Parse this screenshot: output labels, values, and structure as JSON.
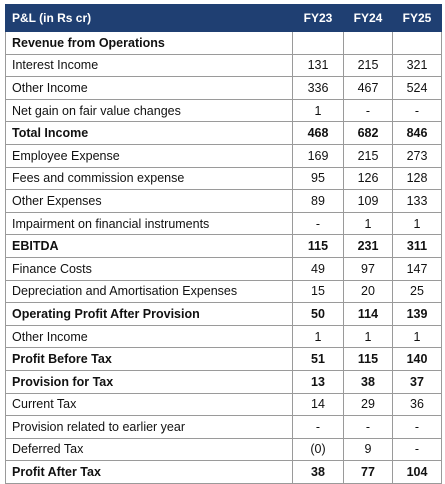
{
  "table": {
    "header": {
      "label": "P&L (in Rs cr)",
      "years": [
        "FY23",
        "FY24",
        "FY25"
      ]
    },
    "rows": [
      {
        "label": "Revenue from Operations",
        "values": [
          "",
          "",
          ""
        ],
        "bold": true
      },
      {
        "label": "Interest Income",
        "values": [
          "131",
          "215",
          "321"
        ],
        "bold": false
      },
      {
        "label": "Other Income",
        "values": [
          "336",
          "467",
          "524"
        ],
        "bold": false
      },
      {
        "label": "Net gain on fair value changes",
        "values": [
          "1",
          "-",
          "-"
        ],
        "bold": false
      },
      {
        "label": "Total Income",
        "values": [
          "468",
          "682",
          "846"
        ],
        "bold": true
      },
      {
        "label": "Employee Expense",
        "values": [
          "169",
          "215",
          "273"
        ],
        "bold": false
      },
      {
        "label": "Fees and commission expense",
        "values": [
          "95",
          "126",
          "128"
        ],
        "bold": false
      },
      {
        "label": "Other Expenses",
        "values": [
          "89",
          "109",
          "133"
        ],
        "bold": false
      },
      {
        "label": "Impairment on financial instruments",
        "values": [
          "-",
          "1",
          "1"
        ],
        "bold": false
      },
      {
        "label": "EBITDA",
        "values": [
          "115",
          "231",
          "311"
        ],
        "bold": true
      },
      {
        "label": "Finance Costs",
        "values": [
          "49",
          "97",
          "147"
        ],
        "bold": false
      },
      {
        "label": "Depreciation and Amortisation Expenses",
        "values": [
          "15",
          "20",
          "25"
        ],
        "bold": false
      },
      {
        "label": "Operating Profit After Provision",
        "values": [
          "50",
          "114",
          "139"
        ],
        "bold": true
      },
      {
        "label": "Other Income",
        "values": [
          "1",
          "1",
          "1"
        ],
        "bold": false
      },
      {
        "label": "Profit Before Tax",
        "values": [
          "51",
          "115",
          "140"
        ],
        "bold": true
      },
      {
        "label": "Provision for Tax",
        "values": [
          "13",
          "38",
          "37"
        ],
        "bold": true
      },
      {
        "label": "Current Tax",
        "values": [
          "14",
          "29",
          "36"
        ],
        "bold": false
      },
      {
        "label": "Provision related to earlier year",
        "values": [
          "-",
          "-",
          "-"
        ],
        "bold": false
      },
      {
        "label": "Deferred Tax",
        "values": [
          "(0)",
          "9",
          "-"
        ],
        "bold": false
      },
      {
        "label": "Profit After Tax",
        "values": [
          "38",
          "77",
          "104"
        ],
        "bold": true
      }
    ]
  }
}
